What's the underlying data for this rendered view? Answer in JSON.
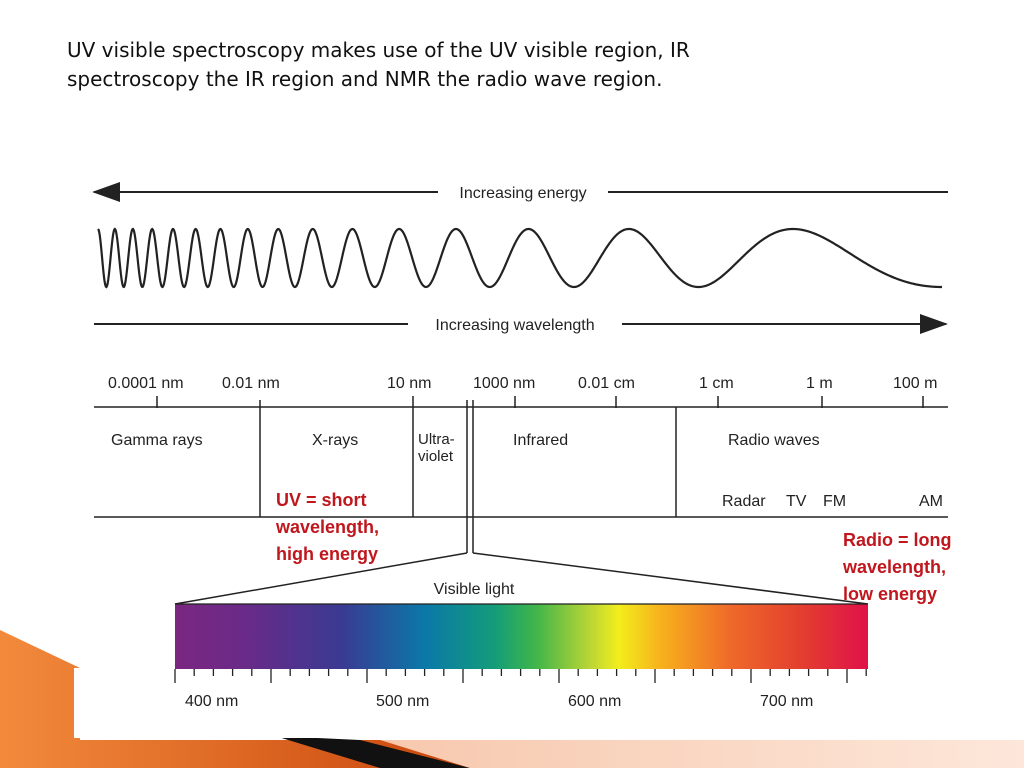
{
  "slide": {
    "caption_lines": [
      "UV visible spectroscopy makes use of the UV visible region, IR",
      "spectroscopy the IR region and NMR the radio wave region."
    ]
  },
  "diagram": {
    "energy_arrow_label": "Increasing energy",
    "wavelength_arrow_label": "Increasing wavelength",
    "scale_labels": [
      "0.0001 nm",
      "0.01 nm",
      "10 nm",
      "1000 nm",
      "0.01 cm",
      "1 cm",
      "1 m",
      "100 m"
    ],
    "regions": {
      "gamma": "Gamma rays",
      "xray": "X-rays",
      "uv_line1": "Ultra-",
      "uv_line2": "violet",
      "infrared": "Infrared",
      "radio": "Radio waves"
    },
    "radio_sub_bands": [
      "Radar",
      "TV",
      "FM",
      "AM"
    ],
    "visible_label": "Visible light",
    "visible_scale": [
      "400 nm",
      "500 nm",
      "600 nm",
      "700 nm"
    ]
  },
  "annotations": {
    "uv": [
      "UV = short",
      "wavelength,",
      "high energy"
    ],
    "radio": [
      "Radio = long",
      "wavelength,",
      "low energy"
    ]
  },
  "colors": {
    "annotation_red": "#c0161d",
    "accent_orange": "#e8591a"
  }
}
